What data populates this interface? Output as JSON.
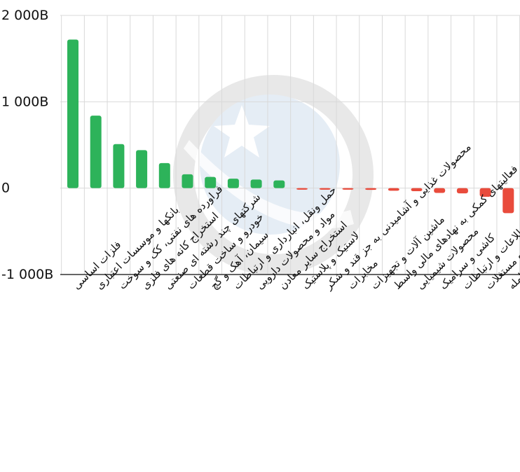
{
  "chart_data": {
    "type": "bar",
    "title": "",
    "xlabel": "",
    "ylabel": "",
    "ylim": [
      -1000,
      2000
    ],
    "yticks": [
      {
        "value": 2000,
        "label": "2 000B"
      },
      {
        "value": 1000,
        "label": "1 000B"
      },
      {
        "value": 0,
        "label": "0"
      },
      {
        "value": -1000,
        "label": "-1 000B"
      }
    ],
    "grid": true,
    "legend": "none",
    "colors": {
      "positive": "#2db35a",
      "negative": "#e94b3c",
      "grid": "#d9d9d9"
    },
    "categories": [
      "فلزات اساسی",
      "بانکها و موسسات اعتباری",
      "فراورده های نفتی، کک و سوخت",
      "استخراج کانه های فلزی",
      "شرکتهای چند رشته ای صنعتی",
      "خودرو و ساخت قطعات",
      "سیمان، آهک و گچ",
      "حمل ونقل، انبارداری و ارتباطات",
      "مواد و محصولات دارویی",
      "استخراج سایر معادن",
      "لاستیک و پلاستیک",
      "محصولات غذایی و آشامیدنی به جز قند و شکر",
      "مخابرات",
      "ماشین آلات و تجهیزات",
      "فعالیتهای کمکی به نهادهای مالی واسط",
      "محصولات شیمیایی",
      "کاشی و سرامیک",
      "اطلاعات و ارتباطات",
      "انبوه سازی، املاک و مستغلات",
      "صندوق سرمایه گذاری قابل معامله"
    ],
    "values": [
      1720,
      840,
      510,
      440,
      290,
      160,
      130,
      110,
      100,
      90,
      -18,
      -18,
      -18,
      -20,
      -30,
      -35,
      -55,
      -60,
      -100,
      -290
    ]
  }
}
